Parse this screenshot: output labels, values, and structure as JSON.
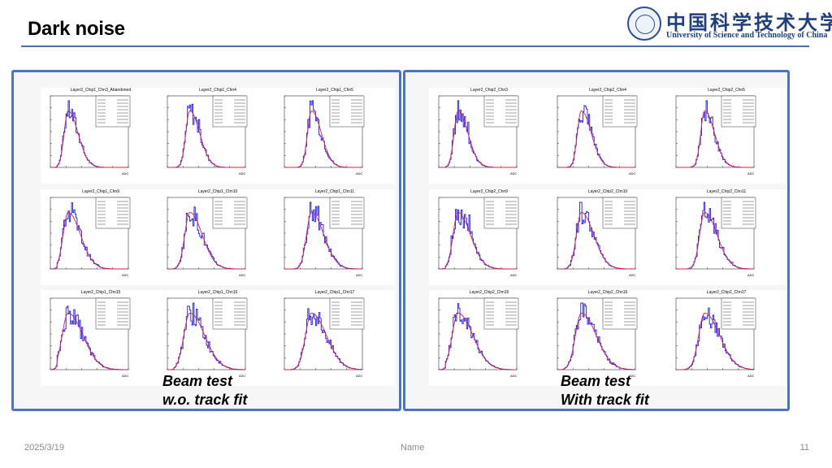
{
  "slide": {
    "title": "Dark noise"
  },
  "logo": {
    "cn": "中国科学技术大学",
    "en": "University of Science and Technology of China"
  },
  "panels": {
    "left": {
      "caption_line1": "Beam test",
      "caption_line2": "w.o. track fit",
      "plots": [
        {
          "title": "Layer2_Chip1_Chn3_Abandoned"
        },
        {
          "title": "Layer2_Chip1_Chn4"
        },
        {
          "title": "Layer2_Chip1_Chn5"
        },
        {
          "title": "Layer2_Chip1_Chn9"
        },
        {
          "title": "Layer2_Chip1_Chn10"
        },
        {
          "title": "Layer2_Chip1_Chn11"
        },
        {
          "title": "Layer2_Chip1_Chn15"
        },
        {
          "title": "Layer2_Chip1_Chn16"
        },
        {
          "title": "Layer2_Chip1_Chn17"
        }
      ]
    },
    "right": {
      "caption_line1": "Beam test",
      "caption_line2": "With track fit",
      "plots": [
        {
          "title": "Layer2_Chip2_Chn3"
        },
        {
          "title": "Layer2_Chip2_Chn4"
        },
        {
          "title": "Layer2_Chip2_Chn5"
        },
        {
          "title": "Layer2_Chip2_Chn9"
        },
        {
          "title": "Layer2_Chip2_Chn10"
        },
        {
          "title": "Layer2_Chip2_Chn11"
        },
        {
          "title": "Layer2_Chip2_Chn15"
        },
        {
          "title": "Layer2_Chip2_Chn16"
        },
        {
          "title": "Layer2_Chip2_Chn17"
        }
      ]
    }
  },
  "plot_style": {
    "histogram_color": "#1a1aff",
    "fit_color": "#e0203a",
    "x_axis_label": "ADC"
  },
  "footer": {
    "date": "2025/3/19",
    "name": "Name",
    "page": "11"
  }
}
